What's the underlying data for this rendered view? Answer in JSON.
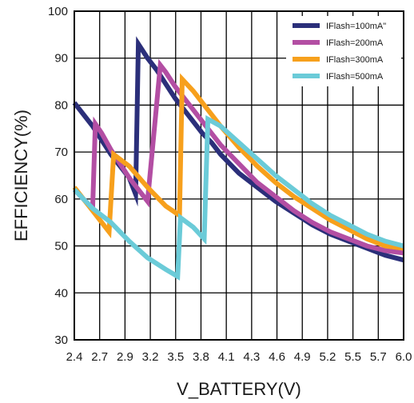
{
  "chart_data": {
    "type": "line",
    "title": "",
    "xlabel": "V_BATTERY(V)",
    "ylabel": "EFFICIENCY(%)",
    "xlim": [
      2.4,
      6.0
    ],
    "ylim": [
      30,
      100
    ],
    "x_tick_labels": [
      "2.4",
      "2.7",
      "2.9",
      "3.2",
      "3.5",
      "3.8",
      "4.1",
      "4.3",
      "4.6",
      "4.9",
      "5.2",
      "5.5",
      "5.7",
      "6.0"
    ],
    "y_ticks": [
      30,
      40,
      50,
      60,
      70,
      80,
      90,
      100
    ],
    "grid": true,
    "legend_position": "top-right",
    "series": [
      {
        "name": "IFlash=100mA\"",
        "color": "#2b2f7a",
        "x": [
          2.4,
          2.6,
          2.8,
          3.0,
          3.07,
          3.1,
          3.2,
          3.3,
          3.4,
          3.5,
          3.6,
          3.7,
          3.8,
          3.9,
          4.0,
          4.2,
          4.4,
          4.6,
          4.8,
          5.0,
          5.2,
          5.4,
          5.6,
          5.8,
          6.0
        ],
        "y": [
          80.5,
          75.5,
          69.5,
          64.5,
          61.0,
          93.0,
          90.0,
          87.5,
          84.5,
          81.5,
          79.0,
          76.5,
          74.0,
          72.0,
          69.5,
          65.5,
          62.5,
          59.5,
          57.0,
          54.5,
          52.5,
          51.0,
          49.5,
          48.0,
          47.0
        ]
      },
      {
        "name": "IFlash=200mA",
        "color": "#b34ea3",
        "x": [
          2.4,
          2.5,
          2.6,
          2.63,
          2.7,
          2.8,
          3.0,
          3.2,
          3.34,
          3.4,
          3.5,
          3.6,
          3.7,
          3.8,
          3.9,
          4.0,
          4.2,
          4.4,
          4.6,
          4.8,
          5.0,
          5.2,
          5.4,
          5.6,
          5.8,
          6.0
        ],
        "y": [
          62.0,
          60.0,
          58.0,
          76.0,
          74.0,
          70.5,
          64.5,
          59.5,
          88.5,
          87.0,
          84.0,
          81.5,
          79.0,
          76.5,
          74.0,
          71.5,
          67.5,
          63.5,
          60.5,
          57.5,
          55.0,
          53.0,
          51.5,
          50.0,
          49.0,
          48.5
        ]
      },
      {
        "name": "IFlash=300mA",
        "color": "#f7a01c",
        "x": [
          2.4,
          2.5,
          2.6,
          2.7,
          2.78,
          2.83,
          3.0,
          3.2,
          3.4,
          3.55,
          3.58,
          3.7,
          3.8,
          3.9,
          4.0,
          4.2,
          4.4,
          4.6,
          4.8,
          5.0,
          5.2,
          5.4,
          5.6,
          5.8,
          6.0
        ],
        "y": [
          62.5,
          60.0,
          57.5,
          55.0,
          53.0,
          69.5,
          67.0,
          62.5,
          58.5,
          56.5,
          85.5,
          83.0,
          80.5,
          78.0,
          75.5,
          71.0,
          67.0,
          63.5,
          60.5,
          58.0,
          55.5,
          53.5,
          51.5,
          50.0,
          49.5
        ]
      },
      {
        "name": "IFlash=500mA",
        "color": "#6bcbd8",
        "x": [
          2.4,
          2.5,
          2.6,
          2.7,
          2.8,
          2.9,
          3.0,
          3.2,
          3.4,
          3.53,
          3.56,
          3.7,
          3.82,
          3.86,
          4.0,
          4.2,
          4.4,
          4.6,
          4.8,
          5.0,
          5.2,
          5.4,
          5.6,
          5.8,
          6.0
        ],
        "y": [
          62.0,
          60.0,
          58.0,
          56.5,
          55.0,
          53.0,
          51.0,
          47.5,
          45.0,
          43.5,
          56.0,
          54.0,
          51.5,
          77.0,
          75.5,
          72.0,
          68.5,
          65.0,
          62.0,
          59.0,
          56.5,
          54.5,
          52.5,
          51.0,
          50.0
        ]
      }
    ]
  }
}
